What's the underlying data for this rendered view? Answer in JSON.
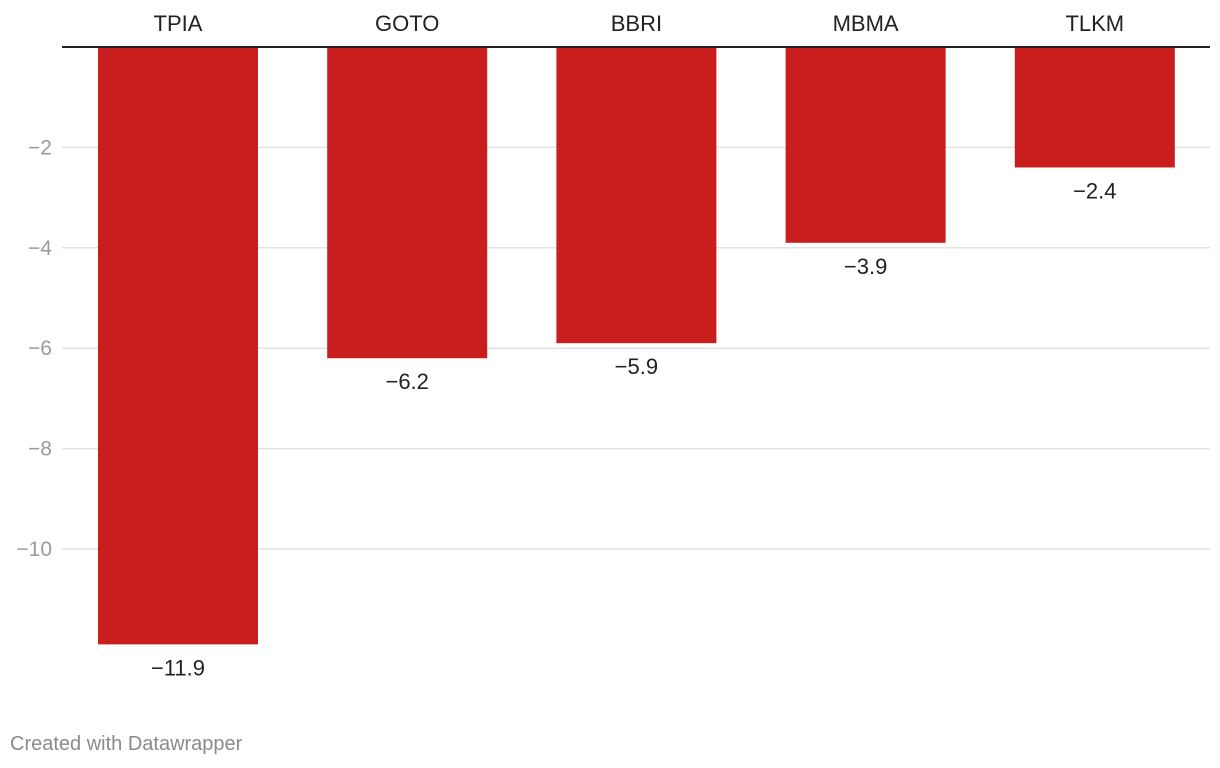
{
  "chart_data": {
    "type": "bar",
    "categories": [
      "TPIA",
      "GOTO",
      "BBRI",
      "MBMA",
      "TLKM"
    ],
    "values": [
      -11.9,
      -6.2,
      -5.9,
      -3.9,
      -2.4
    ],
    "value_labels": [
      "−11.9",
      "−6.2",
      "−5.9",
      "−3.9",
      "−2.4"
    ],
    "ylim": [
      -12,
      0
    ],
    "yticks": [
      -2,
      -4,
      -6,
      -8,
      -10
    ],
    "ytick_labels": [
      "−2",
      "−4",
      "−6",
      "−8",
      "−10"
    ],
    "category_axis_position": "top",
    "grid": true,
    "bar_color": "#c91d1e",
    "title": "",
    "xlabel": "",
    "ylabel": ""
  },
  "footer": {
    "credit": "Created with Datawrapper"
  }
}
